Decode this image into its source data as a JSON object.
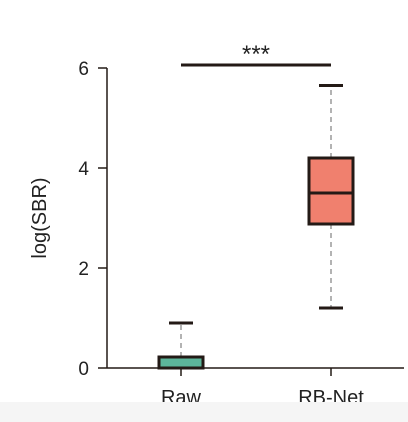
{
  "chart_data": {
    "type": "box",
    "ylabel": "log(SBR)",
    "xlabel": "",
    "ylim": [
      0,
      6
    ],
    "yticks": [
      0,
      2,
      4,
      6
    ],
    "categories": [
      "Raw",
      "RB-Net"
    ],
    "boxes": [
      {
        "category": "Raw",
        "whisker_low": 0.0,
        "q1": 0.0,
        "median": 0.0,
        "q3": 0.22,
        "whisker_high": 0.9
      },
      {
        "category": "RB-Net",
        "whisker_low": 1.2,
        "q1": 2.88,
        "median": 3.5,
        "q3": 4.2,
        "whisker_high": 5.65
      }
    ],
    "significance": {
      "label": "***",
      "between": [
        "Raw",
        "RB-Net"
      ]
    },
    "colors": {
      "Raw": "#5cb59a",
      "RB-Net": "#f0806e",
      "stroke": "#231a16"
    },
    "grid": false,
    "legend": false
  }
}
